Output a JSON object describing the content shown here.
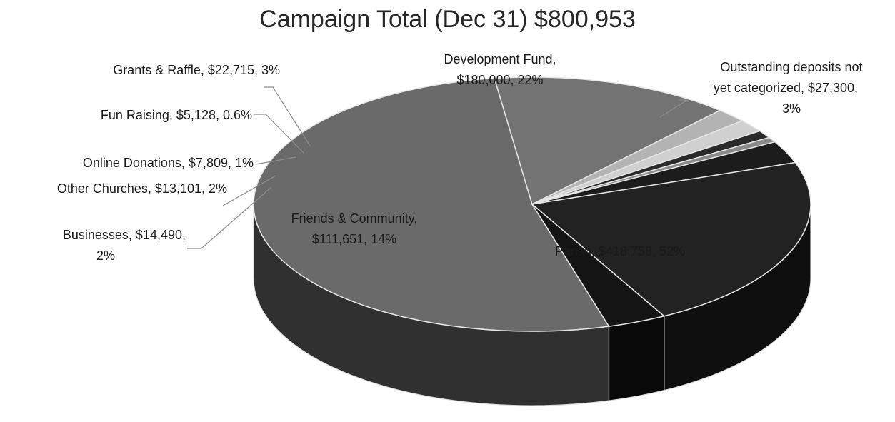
{
  "chart_data": {
    "type": "pie",
    "title": "Campaign Total (Dec 31) $800,953",
    "slices": [
      {
        "name": "Parish",
        "value": 418758,
        "percent": "52%",
        "label_lines": [
          "Parish, $418,758, 52%"
        ],
        "color": "#6a6a6a"
      },
      {
        "name": "Friends & Community",
        "value": 111651,
        "percent": "14%",
        "label_lines": [
          "Friends & Community,",
          "$111,651, 14%"
        ],
        "color": "#737373"
      },
      {
        "name": "Businesses",
        "value": 14490,
        "percent": "2%",
        "label_lines": [
          "Businesses, $14,490,",
          "2%"
        ],
        "color": "#b3b3b3"
      },
      {
        "name": "Other Churches",
        "value": 13101,
        "percent": "2%",
        "label_lines": [
          "Other Churches, $13,101, 2%"
        ],
        "color": "#d0d0d0"
      },
      {
        "name": "Online Donations",
        "value": 7809,
        "percent": "1%",
        "label_lines": [
          "Online Donations, $7,809, 1%"
        ],
        "color": "#2a2a2a"
      },
      {
        "name": "Fun Raising",
        "value": 5128,
        "percent": "0.6%",
        "label_lines": [
          "Fun Raising, $5,128, 0.6%"
        ],
        "color": "#8a8a8a"
      },
      {
        "name": "Grants & Raffle",
        "value": 22715,
        "percent": "3%",
        "label_lines": [
          "Grants & Raffle, $22,715, 3%"
        ],
        "color": "#1c1c1c"
      },
      {
        "name": "Development Fund",
        "value": 180000,
        "percent": "22%",
        "label_lines": [
          "Development Fund,",
          "$180,000, 22%"
        ],
        "color": "#222222"
      },
      {
        "name": "Outstanding deposits not yet categorized",
        "value": 27300,
        "percent": "3%",
        "label_lines": [
          "Outstanding deposits not",
          "yet categorized, $27,300,",
          "3%"
        ],
        "color": "#141414"
      }
    ],
    "legend": "none",
    "style": "3d-pie"
  }
}
